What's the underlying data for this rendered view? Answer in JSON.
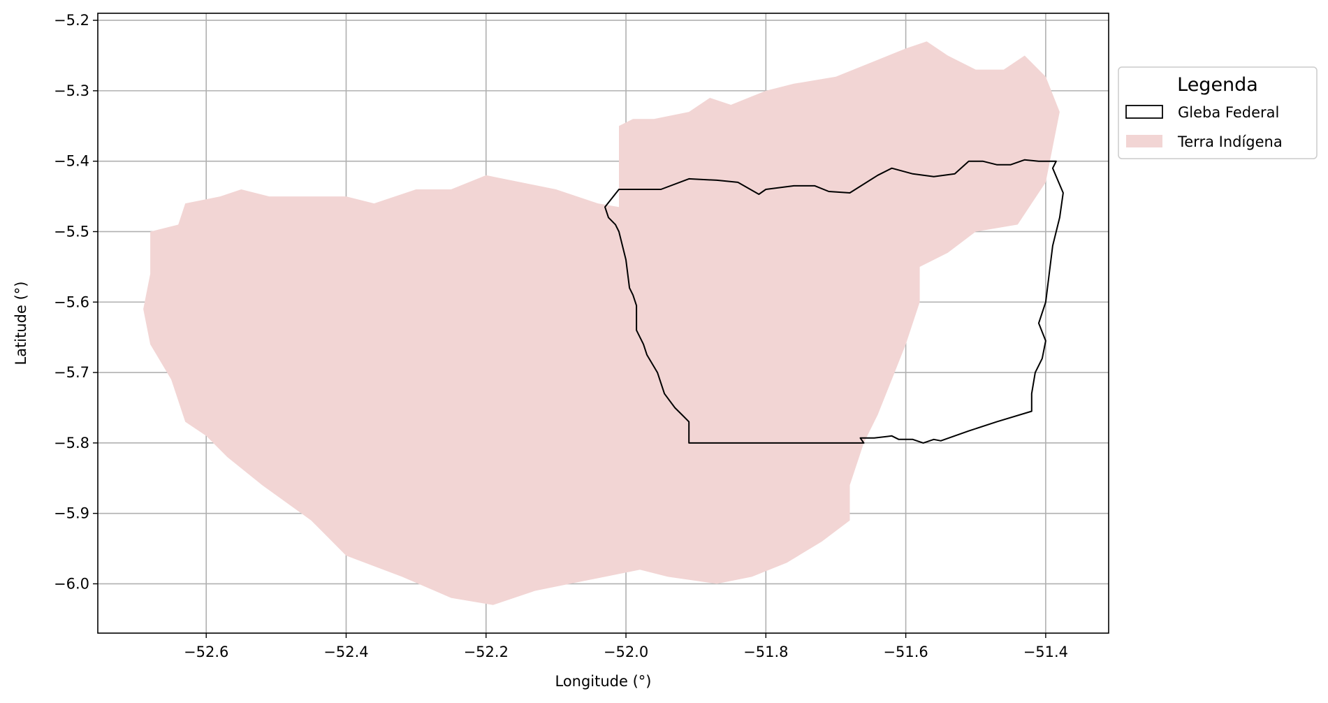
{
  "chart_data": {
    "type": "map",
    "xlabel": "Longitude (°)",
    "ylabel": "Latitude (°)",
    "xlim": [
      -52.755,
      -51.31
    ],
    "ylim": [
      -6.07,
      -5.19
    ],
    "xticks": [
      -52.6,
      -52.4,
      -52.2,
      -52.0,
      -51.8,
      -51.6,
      -51.4
    ],
    "yticks": [
      -5.2,
      -5.3,
      -5.4,
      -5.5,
      -5.6,
      -5.7,
      -5.8,
      -5.9,
      -6.0
    ],
    "xtick_labels": [
      "−52.6",
      "−52.4",
      "−52.2",
      "−52.0",
      "−51.8",
      "−51.6",
      "−51.4"
    ],
    "ytick_labels": [
      "−5.2",
      "−5.3",
      "−5.4",
      "−5.5",
      "−5.6",
      "−5.7",
      "−5.8",
      "−5.9",
      "−6.0"
    ],
    "grid": true,
    "legend": {
      "title": "Legenda",
      "placement": "outside right, top",
      "entries": [
        "Gleba Federal",
        "Terra Indígena"
      ]
    },
    "layers": [
      {
        "name": "Terra Indígena",
        "style": "filled polygon",
        "fill": "#f2d5d4",
        "edge": "none",
        "coordinates": [
          [
            -52.68,
            -5.5
          ],
          [
            -52.64,
            -5.49
          ],
          [
            -52.63,
            -5.46
          ],
          [
            -52.58,
            -5.45
          ],
          [
            -52.55,
            -5.44
          ],
          [
            -52.51,
            -5.45
          ],
          [
            -52.46,
            -5.45
          ],
          [
            -52.4,
            -5.45
          ],
          [
            -52.36,
            -5.46
          ],
          [
            -52.3,
            -5.44
          ],
          [
            -52.25,
            -5.44
          ],
          [
            -52.2,
            -5.42
          ],
          [
            -52.15,
            -5.43
          ],
          [
            -52.1,
            -5.44
          ],
          [
            -52.04,
            -5.46
          ],
          [
            -52.01,
            -5.465
          ],
          [
            -52.01,
            -5.35
          ],
          [
            -51.99,
            -5.34
          ],
          [
            -51.96,
            -5.34
          ],
          [
            -51.91,
            -5.33
          ],
          [
            -51.88,
            -5.31
          ],
          [
            -51.85,
            -5.32
          ],
          [
            -51.8,
            -5.3
          ],
          [
            -51.76,
            -5.29
          ],
          [
            -51.7,
            -5.28
          ],
          [
            -51.65,
            -5.26
          ],
          [
            -51.6,
            -5.24
          ],
          [
            -51.57,
            -5.23
          ],
          [
            -51.54,
            -5.25
          ],
          [
            -51.5,
            -5.27
          ],
          [
            -51.46,
            -5.27
          ],
          [
            -51.43,
            -5.25
          ],
          [
            -51.4,
            -5.28
          ],
          [
            -51.38,
            -5.33
          ],
          [
            -51.39,
            -5.38
          ],
          [
            -51.4,
            -5.43
          ],
          [
            -51.42,
            -5.46
          ],
          [
            -51.44,
            -5.49
          ],
          [
            -51.5,
            -5.5
          ],
          [
            -51.54,
            -5.53
          ],
          [
            -51.58,
            -5.55
          ],
          [
            -51.58,
            -5.6
          ],
          [
            -51.6,
            -5.66
          ],
          [
            -51.62,
            -5.71
          ],
          [
            -51.64,
            -5.76
          ],
          [
            -51.66,
            -5.8
          ],
          [
            -51.68,
            -5.86
          ],
          [
            -51.68,
            -5.91
          ],
          [
            -51.72,
            -5.94
          ],
          [
            -51.77,
            -5.97
          ],
          [
            -51.82,
            -5.99
          ],
          [
            -51.87,
            -6.0
          ],
          [
            -51.94,
            -5.99
          ],
          [
            -51.98,
            -5.98
          ],
          [
            -52.03,
            -5.99
          ],
          [
            -52.08,
            -6.0
          ],
          [
            -52.13,
            -6.01
          ],
          [
            -52.19,
            -6.03
          ],
          [
            -52.25,
            -6.02
          ],
          [
            -52.32,
            -5.99
          ],
          [
            -52.4,
            -5.96
          ],
          [
            -52.45,
            -5.91
          ],
          [
            -52.52,
            -5.86
          ],
          [
            -52.57,
            -5.82
          ],
          [
            -52.6,
            -5.79
          ],
          [
            -52.63,
            -5.77
          ],
          [
            -52.65,
            -5.71
          ],
          [
            -52.68,
            -5.66
          ],
          [
            -52.69,
            -5.61
          ],
          [
            -52.68,
            -5.56
          ]
        ]
      },
      {
        "name": "Gleba Federal",
        "style": "outline polygon",
        "fill": "none",
        "edge": "#000000",
        "coordinates": [
          [
            -52.03,
            -5.465
          ],
          [
            -52.01,
            -5.44
          ],
          [
            -51.95,
            -5.44
          ],
          [
            -51.91,
            -5.425
          ],
          [
            -51.87,
            -5.427
          ],
          [
            -51.84,
            -5.43
          ],
          [
            -51.81,
            -5.447
          ],
          [
            -51.8,
            -5.44
          ],
          [
            -51.76,
            -5.435
          ],
          [
            -51.73,
            -5.435
          ],
          [
            -51.71,
            -5.443
          ],
          [
            -51.68,
            -5.445
          ],
          [
            -51.64,
            -5.42
          ],
          [
            -51.62,
            -5.41
          ],
          [
            -51.59,
            -5.418
          ],
          [
            -51.56,
            -5.422
          ],
          [
            -51.53,
            -5.418
          ],
          [
            -51.51,
            -5.4
          ],
          [
            -51.49,
            -5.4
          ],
          [
            -51.47,
            -5.405
          ],
          [
            -51.45,
            -5.405
          ],
          [
            -51.43,
            -5.398
          ],
          [
            -51.41,
            -5.4
          ],
          [
            -51.385,
            -5.4
          ],
          [
            -51.39,
            -5.41
          ],
          [
            -51.375,
            -5.445
          ],
          [
            -51.38,
            -5.48
          ],
          [
            -51.39,
            -5.52
          ],
          [
            -51.395,
            -5.56
          ],
          [
            -51.4,
            -5.6
          ],
          [
            -51.41,
            -5.63
          ],
          [
            -51.4,
            -5.655
          ],
          [
            -51.405,
            -5.68
          ],
          [
            -51.415,
            -5.7
          ],
          [
            -51.42,
            -5.73
          ],
          [
            -51.42,
            -5.755
          ],
          [
            -51.47,
            -5.77
          ],
          [
            -51.51,
            -5.783
          ],
          [
            -51.55,
            -5.797
          ],
          [
            -51.56,
            -5.795
          ],
          [
            -51.575,
            -5.8
          ],
          [
            -51.59,
            -5.795
          ],
          [
            -51.61,
            -5.795
          ],
          [
            -51.62,
            -5.79
          ],
          [
            -51.645,
            -5.793
          ],
          [
            -51.665,
            -5.793
          ],
          [
            -51.66,
            -5.8
          ],
          [
            -51.69,
            -5.8
          ],
          [
            -51.8,
            -5.8
          ],
          [
            -51.91,
            -5.8
          ],
          [
            -51.91,
            -5.77
          ],
          [
            -51.92,
            -5.76
          ],
          [
            -51.93,
            -5.75
          ],
          [
            -51.945,
            -5.73
          ],
          [
            -51.955,
            -5.7
          ],
          [
            -51.97,
            -5.675
          ],
          [
            -51.975,
            -5.66
          ],
          [
            -51.985,
            -5.64
          ],
          [
            -51.985,
            -5.605
          ],
          [
            -51.99,
            -5.59
          ],
          [
            -51.995,
            -5.58
          ],
          [
            -52.0,
            -5.54
          ],
          [
            -52.005,
            -5.52
          ],
          [
            -52.01,
            -5.5
          ],
          [
            -52.015,
            -5.49
          ],
          [
            -52.025,
            -5.48
          ],
          [
            -52.03,
            -5.465
          ]
        ]
      }
    ]
  }
}
